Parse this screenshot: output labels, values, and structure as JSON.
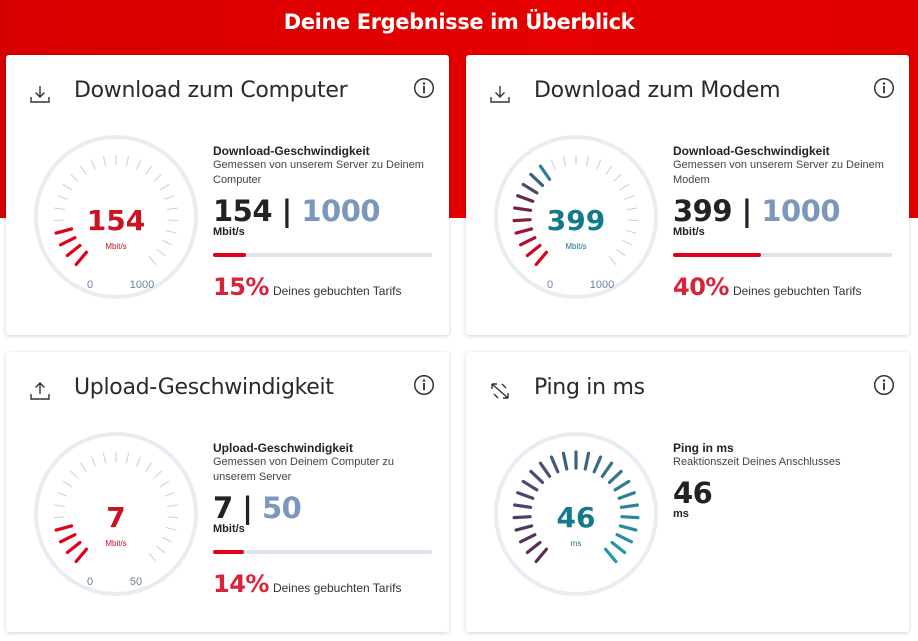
{
  "page": {
    "title": "Deine Ergebnisse im Überblick"
  },
  "colors": {
    "brand_red": "#e60000",
    "gauge_red": "#e0001a",
    "max_blue": "#7c97bd",
    "ping_teal": "#1f9aab",
    "ping_purple": "#5c2a55"
  },
  "cards": {
    "computer": {
      "icon": "download-icon",
      "title": "Download zum Computer",
      "gauge": {
        "value": "154",
        "unit": "Mbit/s",
        "min": "0",
        "max": "1000",
        "fraction": 0.154
      },
      "info": {
        "heading": "Download-Geschwindigkeit",
        "sub": "Gemessen von unserem Server zu Deinem Computer",
        "value": "154",
        "sep": " | ",
        "max": "1000",
        "unit": "Mbit/s"
      },
      "progress": 0.15,
      "percent": "15%",
      "percent_text": "Deines gebuchten Tarifs"
    },
    "modem": {
      "icon": "download-icon",
      "title": "Download zum Modem",
      "gauge": {
        "value": "399",
        "unit": "Mbit/s",
        "min": "0",
        "max": "1000",
        "fraction": 0.399
      },
      "info": {
        "heading": "Download-Geschwindigkeit",
        "sub": "Gemessen von unserem Server zu Deinem Modem",
        "value": "399",
        "sep": " | ",
        "max": "1000",
        "unit": "Mbit/s"
      },
      "progress": 0.4,
      "percent": "40%",
      "percent_text": "Deines gebuchten Tarifs"
    },
    "upload": {
      "icon": "upload-icon",
      "title": "Upload-Geschwindigkeit",
      "gauge": {
        "value": "7",
        "unit": "Mbit/s",
        "min": "0",
        "max": "50",
        "fraction": 0.14
      },
      "info": {
        "heading": "Upload-Geschwindigkeit",
        "sub": "Gemessen von Deinem Computer zu unserem Server",
        "value": "7",
        "sep": " | ",
        "max": "50",
        "unit": "Mbit/s"
      },
      "progress": 0.14,
      "percent": "14%",
      "percent_text": "Deines gebuchten Tarifs"
    },
    "ping": {
      "icon": "ping-icon",
      "title": "Ping in ms",
      "gauge": {
        "value": "46",
        "unit": "ms",
        "fraction": 1.0
      },
      "info": {
        "heading": "Ping in ms",
        "sub": "Reaktionszeit Deines Anschlusses",
        "value": "46",
        "unit": "ms"
      }
    }
  }
}
